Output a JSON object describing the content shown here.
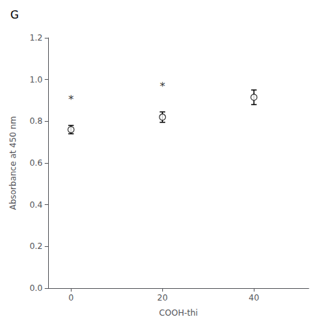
{
  "chart_data": {
    "type": "scatter",
    "title": "G",
    "xlabel": "COOH-thi",
    "ylabel": "Absorbance at 450 nm",
    "x": [
      0,
      20,
      40
    ],
    "values": [
      0.76,
      0.82,
      0.915
    ],
    "errors": [
      0.02,
      0.025,
      0.035
    ],
    "color": "#000000",
    "marker": "circle",
    "xlim": [
      -5,
      52
    ],
    "xticks": [
      0,
      20,
      40
    ],
    "ylim": [
      0,
      1.2
    ],
    "yticks": [
      {
        "value": 0,
        "label": "0.0"
      },
      0.2,
      0.4,
      0.6,
      0.8,
      {
        "value": 1,
        "label": "1.0"
      },
      1.2
    ],
    "annotations": [
      {
        "text": "*",
        "x": 0,
        "y": 0.88
      },
      {
        "text": "*",
        "x": 20,
        "y": 0.94
      }
    ],
    "grid": false
  }
}
